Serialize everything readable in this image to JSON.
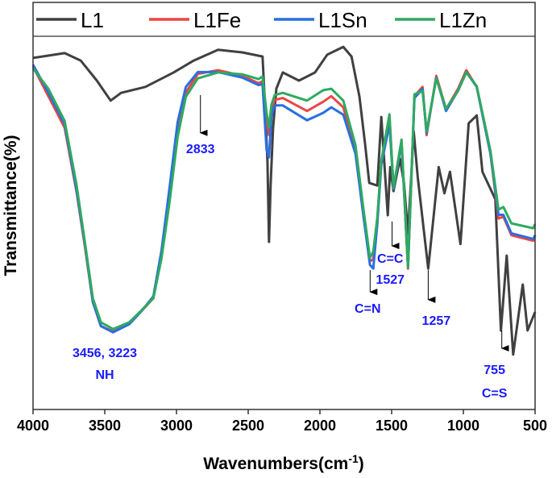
{
  "chart_data": {
    "type": "line",
    "title": "",
    "xlabel": "Wavenumbers(cm",
    "xlabel_sup": "-1",
    "xlabel_close": ")",
    "ylabel": "Transmittance(%)",
    "xlim": [
      4000,
      500
    ],
    "x_reversed": true,
    "ylim": [
      0,
      100
    ],
    "y_ticks_shown": false,
    "grid": false,
    "legend_position": "top",
    "xticks": [
      4000,
      3500,
      3000,
      2500,
      2000,
      1500,
      1000,
      500
    ],
    "series": [
      {
        "name": "L1",
        "color": "#404040",
        "x": [
          4000,
          3780,
          3668,
          3555,
          3459,
          3386,
          3217,
          3020,
          2879,
          2710,
          2541,
          2400,
          2383,
          2366,
          2355,
          2344,
          2327,
          2304,
          2259,
          2146,
          2034,
          1949,
          1837,
          1780,
          1724,
          1684,
          1656,
          1600,
          1572,
          1527,
          1510,
          1487,
          1442,
          1414,
          1386,
          1346,
          1318,
          1245,
          1172,
          1132,
          1093,
          1020,
          963,
          907,
          867,
          777,
          738,
          698,
          653,
          586,
          552,
          500
        ],
        "y": [
          94.8,
          96.1,
          94.1,
          88.7,
          83.3,
          85.4,
          87.0,
          90.9,
          94.1,
          97.0,
          96.3,
          95.2,
          82.2,
          67.0,
          45.2,
          60.4,
          75.7,
          86.5,
          90.9,
          88.7,
          90.9,
          95.7,
          97.8,
          95.2,
          84.3,
          71.3,
          61.1,
          60.4,
          78.9,
          52.4,
          65.4,
          58.9,
          67.6,
          61.1,
          47.4,
          75.0,
          62.6,
          38.0,
          65.4,
          58.3,
          64.1,
          44.6,
          77.2,
          79.3,
          64.1,
          56.7,
          21.3,
          41.5,
          14.8,
          33.7,
          21.3,
          26.3
        ]
      },
      {
        "name": "L1Fe",
        "color": "#ee4444",
        "x": [
          4000,
          3893,
          3780,
          3696,
          3639,
          3583,
          3527,
          3442,
          3330,
          3245,
          3161,
          3104,
          3048,
          2992,
          2935,
          2851,
          2710,
          2541,
          2428,
          2400,
          2372,
          2355,
          2338,
          2315,
          2259,
          2090,
          1977,
          1921,
          1837,
          1752,
          1696,
          1651,
          1628,
          1600,
          1572,
          1515,
          1487,
          1431,
          1386,
          1341,
          1284,
          1256,
          1189,
          1121,
          1037,
          980,
          907,
          811,
          755,
          721,
          665,
          513,
          500
        ],
        "y": [
          92.5,
          84.5,
          76.0,
          58.5,
          44.0,
          29.0,
          22.5,
          21.0,
          23.0,
          26.5,
          30.0,
          41.5,
          57.5,
          75.0,
          85.5,
          90.5,
          91.5,
          90.0,
          88.0,
          88.5,
          78.0,
          74.0,
          80.5,
          83.5,
          84.0,
          80.5,
          83.0,
          84.5,
          81.5,
          70.0,
          53.0,
          40.0,
          40.5,
          51.0,
          67.0,
          79.0,
          60.0,
          72.0,
          38.0,
          84.5,
          87.0,
          74.0,
          90.0,
          81.0,
          86.5,
          91.5,
          87.0,
          69.0,
          51.5,
          52.0,
          47.0,
          45.5,
          47.0
        ]
      },
      {
        "name": "L1Sn",
        "color": "#2a6fe0",
        "x": [
          4000,
          3893,
          3780,
          3696,
          3639,
          3583,
          3527,
          3442,
          3330,
          3245,
          3161,
          3104,
          3048,
          2992,
          2935,
          2851,
          2710,
          2541,
          2428,
          2400,
          2372,
          2355,
          2338,
          2315,
          2259,
          2090,
          1977,
          1921,
          1837,
          1752,
          1696,
          1651,
          1628,
          1600,
          1572,
          1515,
          1487,
          1431,
          1386,
          1341,
          1284,
          1256,
          1189,
          1121,
          1037,
          980,
          907,
          811,
          755,
          721,
          665,
          513,
          500
        ],
        "y": [
          93.0,
          85.5,
          77.0,
          59.0,
          44.5,
          29.0,
          22.5,
          20.8,
          23.0,
          26.5,
          30.5,
          43.0,
          60.0,
          77.5,
          87.0,
          91.0,
          91.0,
          89.5,
          87.5,
          87.8,
          70.0,
          68.0,
          79.0,
          82.0,
          82.0,
          78.0,
          80.0,
          81.5,
          79.5,
          69.0,
          52.0,
          39.0,
          38.0,
          50.0,
          66.0,
          77.0,
          59.5,
          72.0,
          38.5,
          84.0,
          86.5,
          74.5,
          89.5,
          80.5,
          86.0,
          91.0,
          87.0,
          69.0,
          52.5,
          52.5,
          47.5,
          46.0,
          47.0
        ]
      },
      {
        "name": "L1Zn",
        "color": "#2eaa60",
        "x": [
          4000,
          3893,
          3780,
          3696,
          3639,
          3583,
          3527,
          3442,
          3330,
          3245,
          3161,
          3104,
          3048,
          2992,
          2935,
          2851,
          2710,
          2541,
          2428,
          2400,
          2372,
          2355,
          2338,
          2315,
          2259,
          2090,
          1977,
          1921,
          1837,
          1752,
          1696,
          1651,
          1628,
          1600,
          1572,
          1515,
          1487,
          1431,
          1386,
          1341,
          1284,
          1256,
          1189,
          1121,
          1037,
          980,
          907,
          811,
          755,
          721,
          665,
          513,
          500
        ],
        "y": [
          92.0,
          86.5,
          77.8,
          60.4,
          45.2,
          30.0,
          23.5,
          21.7,
          23.5,
          26.7,
          30.0,
          40.9,
          56.1,
          73.5,
          84.3,
          89.3,
          90.9,
          90.4,
          89.1,
          89.8,
          80.0,
          76.1,
          82.2,
          84.8,
          85.4,
          83.3,
          86.1,
          86.5,
          83.3,
          71.3,
          53.9,
          40.9,
          42.6,
          51.7,
          67.0,
          79.6,
          59.8,
          72.8,
          38.3,
          85.0,
          85.9,
          75.0,
          89.3,
          81.1,
          85.9,
          90.9,
          87.2,
          69.8,
          53.9,
          54.6,
          50.2,
          48.9,
          50.0
        ]
      }
    ],
    "annotation_color": "#1a1aff",
    "annotations": [
      {
        "lines": [
          "2833"
        ],
        "x": 2833,
        "arrow_from": 84.8,
        "arrow_to": 74.6,
        "label_x": 2833,
        "label_y": [
          69.1
        ]
      },
      {
        "lines": [
          "3456, 3223",
          "NH"
        ],
        "x": null,
        "label_x": 3500,
        "label_y": [
          14.1,
          8.3
        ]
      },
      {
        "lines": [
          "C=N"
        ],
        "x": 1650,
        "arrow_from": 37.6,
        "arrow_to": 31.7,
        "label_x": 1667,
        "label_y": [
          26.1
        ]
      },
      {
        "lines": [
          "C=C",
          "1527"
        ],
        "x": 1497,
        "arrow_from": 50.7,
        "arrow_to": 44.1,
        "label_x": 1510,
        "label_y": [
          39.6,
          33.9
        ]
      },
      {
        "lines": [
          "1257"
        ],
        "x": 1245,
        "arrow_from": 37.6,
        "arrow_to": 29.6,
        "label_x": 1189,
        "label_y": [
          22.8
        ]
      },
      {
        "lines": [
          "755",
          "C=S"
        ],
        "x": 732,
        "arrow_from": 21.3,
        "arrow_to": 16.5,
        "label_x": 783,
        "label_y": [
          9.6,
          3.3
        ]
      }
    ]
  }
}
